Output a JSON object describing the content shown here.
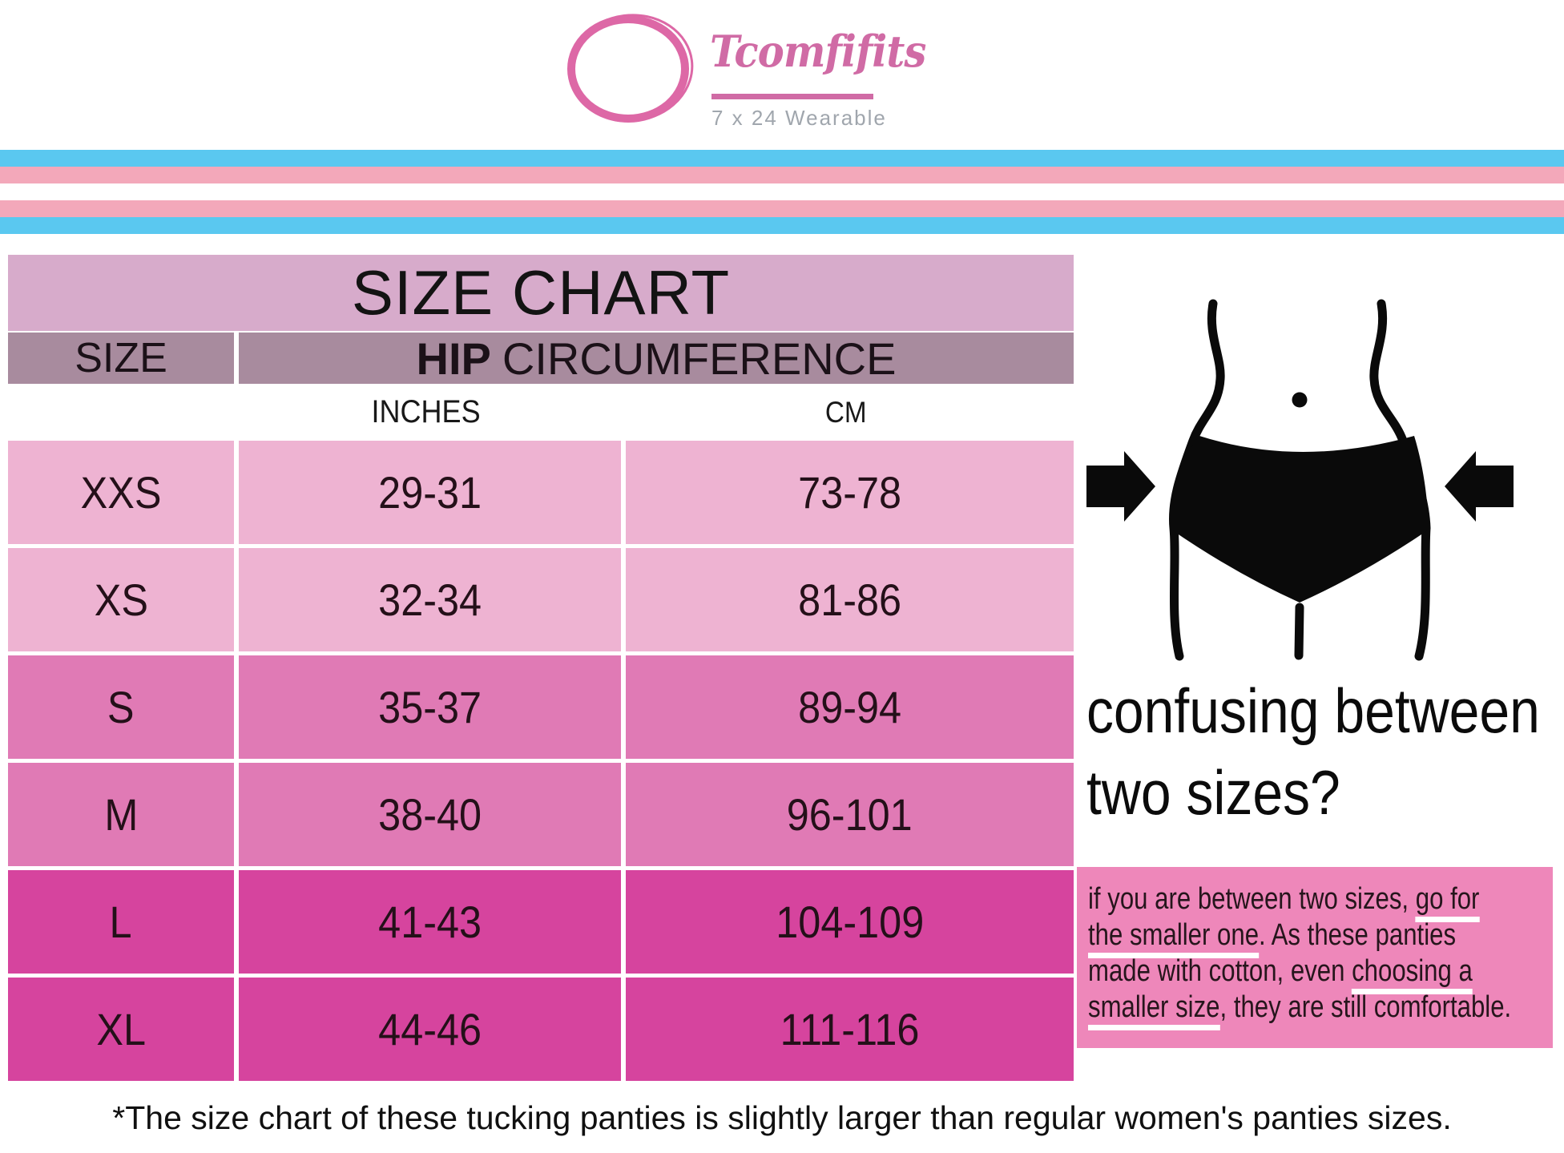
{
  "logo": {
    "brand": "Tcomfifits",
    "tagline": "7 x 24 Wearable"
  },
  "table": {
    "title": "SIZE CHART",
    "size_column_label": "SIZE",
    "hip_label_bold": "HIP",
    "hip_label_rest": "CIRCUMFERENCE",
    "unit_inches": "INCHES",
    "unit_cm": "CM"
  },
  "chart_data": {
    "type": "table",
    "title": "SIZE CHART",
    "columns": [
      "SIZE",
      "HIP CIRCUMFERENCE - INCHES",
      "HIP CIRCUMFERENCE - CM"
    ],
    "rows": [
      [
        "XXS",
        "29-31",
        "73-78"
      ],
      [
        "XS",
        "32-34",
        "81-86"
      ],
      [
        "S",
        "35-37",
        "89-94"
      ],
      [
        "M",
        "38-40",
        "96-101"
      ],
      [
        "L",
        "41-43",
        "104-109"
      ],
      [
        "XL",
        "44-46",
        "111-116"
      ]
    ]
  },
  "right_panel": {
    "heading_line1": "confusing between",
    "heading_line2": "two sizes?",
    "note_lines": [
      [
        {
          "text": "if you are between two sizes, ",
          "underline": false
        },
        {
          "text": "go for",
          "underline": true
        }
      ],
      [
        {
          "text": "the smaller one",
          "underline": true
        },
        {
          "text": ". As these panties",
          "underline": false
        }
      ],
      [
        {
          "text": "made with cotton, even ",
          "underline": false
        },
        {
          "text": "choosing a",
          "underline": true
        }
      ],
      [
        {
          "text": "smaller size",
          "underline": true
        },
        {
          "text": ", they are still comfortable.",
          "underline": false
        }
      ]
    ]
  },
  "footnote": "*The size chart of these tucking panties is slightly larger than regular women's panties sizes.",
  "colors": {
    "flag_blue": "#5ac8f0",
    "flag_pink": "#f3a8ba",
    "table_title_bg": "#d7abcb",
    "table_header_bg": "#a88b9e",
    "row_light": "#eeb3d2",
    "row_medium": "#e07ab5",
    "row_dark": "#d6449e",
    "note_box_bg": "#ee87ba",
    "logo_pink": "#d06ba5",
    "tagline_gray": "#a0a6ad"
  }
}
